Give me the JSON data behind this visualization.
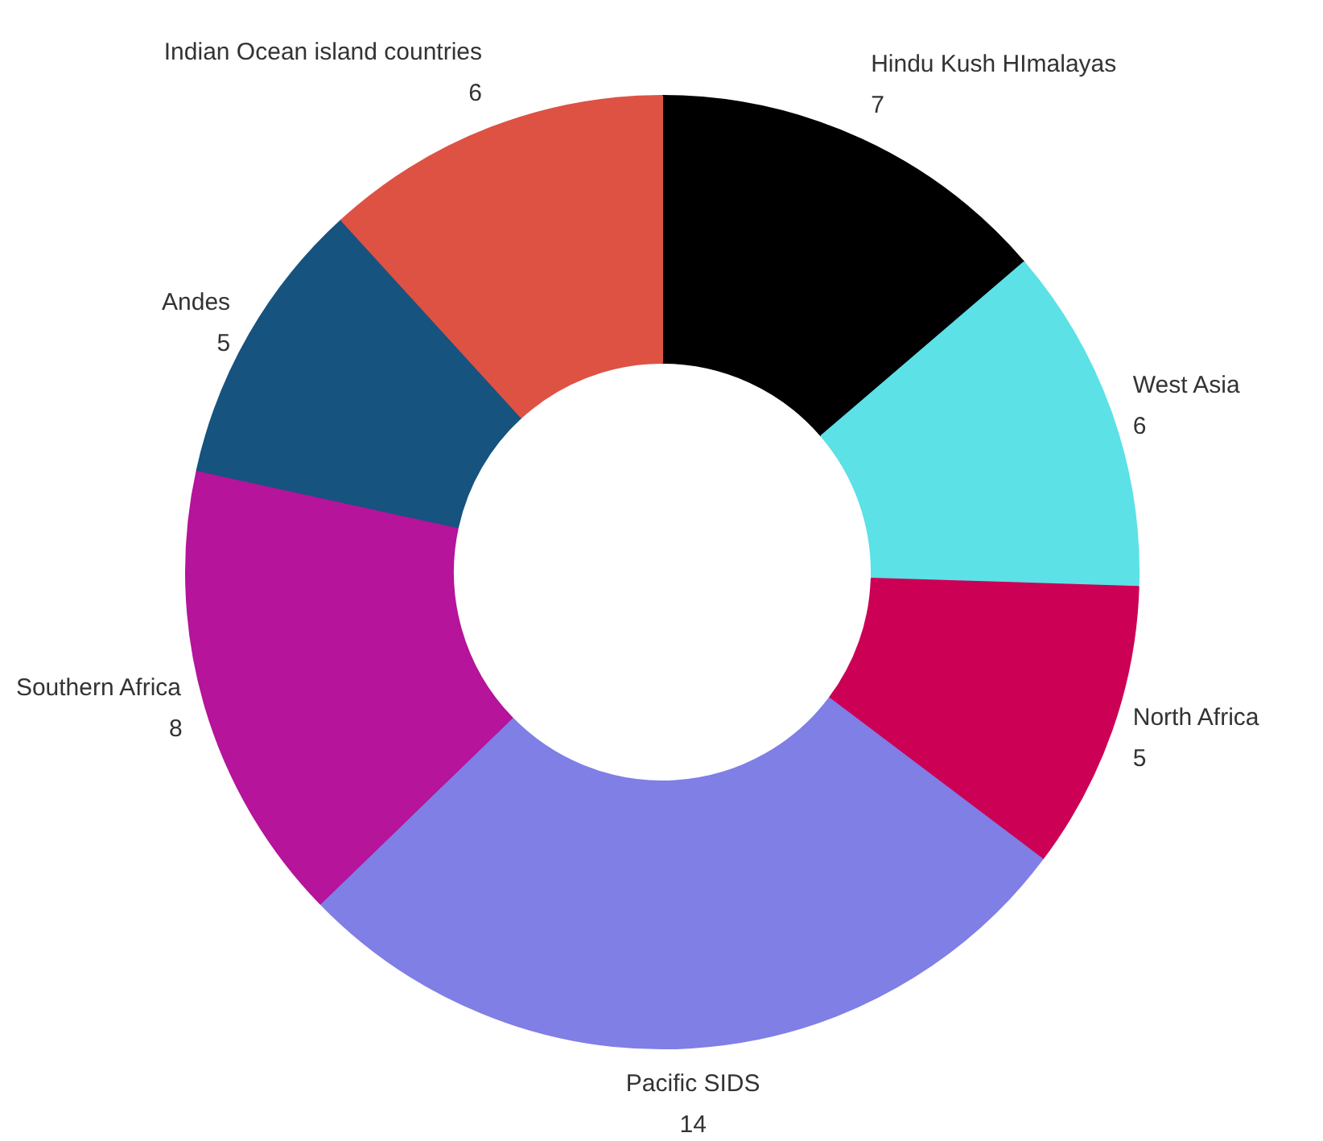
{
  "chart_data": {
    "type": "donut",
    "categories": [
      "Hindu Kush HImalayas",
      "West Asia",
      "North Africa",
      "Pacific SIDS",
      "Southern Africa",
      "Andes",
      "Indian Ocean island countries"
    ],
    "values": [
      7,
      6,
      5,
      14,
      8,
      5,
      6
    ],
    "colors": [
      "#000000",
      "#5ce1e6",
      "#cc0055",
      "#7f7fe6",
      "#b5149b",
      "#17537f",
      "#de5244"
    ],
    "data_labels": true
  }
}
